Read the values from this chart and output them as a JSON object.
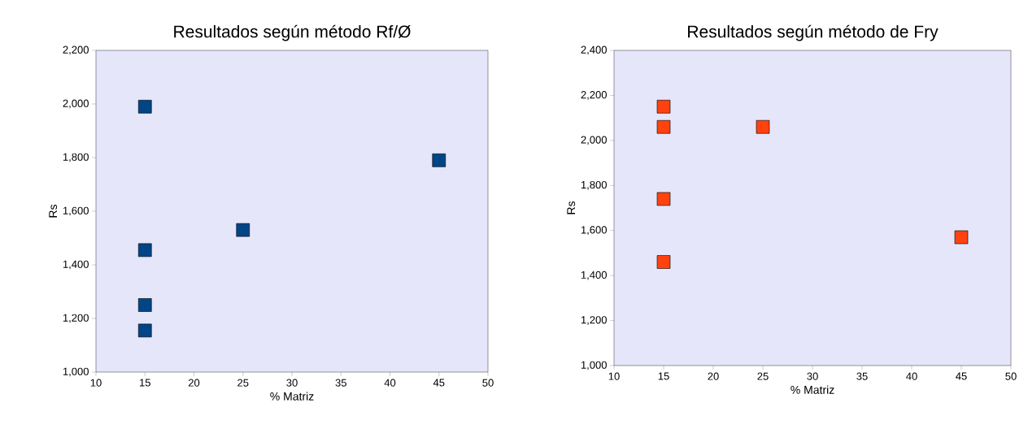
{
  "chart_data": [
    {
      "type": "scatter",
      "title": "Resultados según método Rf/Ø",
      "xlabel": "% Matriz",
      "ylabel": "Rs",
      "marker": "square",
      "x": [
        15,
        15,
        15,
        15,
        25,
        45
      ],
      "series": [
        {
          "color": "#004586",
          "values": [
            1990,
            1455,
            1250,
            1155,
            1530,
            1790
          ]
        }
      ],
      "xlim": [
        10,
        50
      ],
      "xticks": [
        10,
        15,
        20,
        25,
        30,
        35,
        40,
        45,
        50
      ],
      "ylim": [
        1000,
        2200
      ],
      "yticks": [
        {
          "value": 1000,
          "label": "1,000"
        },
        {
          "value": 1200,
          "label": "1,200"
        },
        {
          "value": 1400,
          "label": "1,400"
        },
        {
          "value": 1600,
          "label": "1,600"
        },
        {
          "value": 1800,
          "label": "1,800"
        },
        {
          "value": 2000,
          "label": "2,000"
        },
        {
          "value": 2200,
          "label": "2,200"
        }
      ]
    },
    {
      "type": "scatter",
      "title": "Resultados según método de Fry",
      "xlabel": "% Matriz",
      "ylabel": "Rs",
      "marker": "square",
      "x": [
        15,
        15,
        15,
        15,
        25,
        45
      ],
      "series": [
        {
          "color": "#ff420e",
          "values": [
            2150,
            2060,
            1740,
            1460,
            2060,
            1570
          ]
        }
      ],
      "xlim": [
        10,
        50
      ],
      "xticks": [
        10,
        15,
        20,
        25,
        30,
        35,
        40,
        45,
        50
      ],
      "ylim": [
        1000,
        2400
      ],
      "yticks": [
        {
          "value": 1000,
          "label": "1,000"
        },
        {
          "value": 1200,
          "label": "1,200"
        },
        {
          "value": 1400,
          "label": "1,400"
        },
        {
          "value": 1600,
          "label": "1,600"
        },
        {
          "value": 1800,
          "label": "1,800"
        },
        {
          "value": 2000,
          "label": "2,000"
        },
        {
          "value": 2200,
          "label": "2,200"
        },
        {
          "value": 2400,
          "label": "2,400"
        }
      ]
    }
  ]
}
